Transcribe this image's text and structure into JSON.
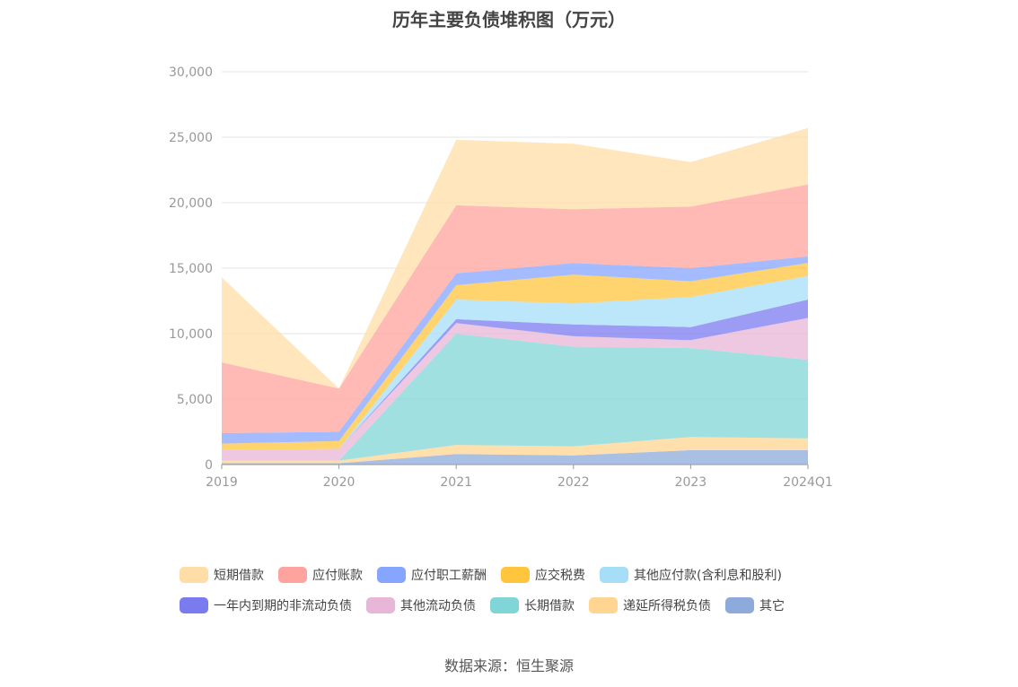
{
  "chart_data": {
    "type": "area",
    "title": "历年主要负债堆积图（万元）",
    "categories": [
      "2019",
      "2020",
      "2021",
      "2022",
      "2023",
      "2024Q1"
    ],
    "ylim": [
      0,
      30000
    ],
    "yticks": [
      "0",
      "5,000",
      "10,000",
      "15,000",
      "20,000",
      "25,000",
      "30,000"
    ],
    "ytick_values": [
      0,
      5000,
      10000,
      15000,
      20000,
      25000,
      30000
    ],
    "stacked": true,
    "grid": true,
    "legend_position": "bottom",
    "series": [
      {
        "name": "其它",
        "color": "#8eaadb",
        "values": [
          100,
          100,
          800,
          700,
          1100,
          1100
        ]
      },
      {
        "name": "递延所得税负债",
        "color": "#ffd591",
        "values": [
          200,
          200,
          700,
          700,
          1000,
          900
        ]
      },
      {
        "name": "长期借款",
        "color": "#80d6d6",
        "values": [
          0,
          0,
          8500,
          7600,
          6800,
          6000
        ]
      },
      {
        "name": "其他流动负债",
        "color": "#e8b6d6",
        "values": [
          800,
          900,
          800,
          800,
          600,
          3200
        ]
      },
      {
        "name": "一年内到期的非流动负债",
        "color": "#7b7bf0",
        "values": [
          0,
          0,
          300,
          900,
          1000,
          1400
        ]
      },
      {
        "name": "其他应付款(含利息和股利)",
        "color": "#a6def7",
        "values": [
          0,
          0,
          1500,
          1600,
          2300,
          1800
        ]
      },
      {
        "name": "应交税费",
        "color": "#ffc53d",
        "values": [
          500,
          600,
          1100,
          2200,
          1200,
          1000
        ]
      },
      {
        "name": "应付职工薪酬",
        "color": "#85a5ff",
        "values": [
          800,
          700,
          900,
          900,
          1000,
          500
        ]
      },
      {
        "name": "应付账款",
        "color": "#ffa39e",
        "values": [
          5400,
          3300,
          5200,
          4100,
          4700,
          5500
        ]
      },
      {
        "name": "短期借款",
        "color": "#ffdda6",
        "values": [
          6500,
          0,
          5000,
          5000,
          3400,
          4300
        ]
      }
    ]
  },
  "legend": {
    "rows": [
      [
        {
          "label": "短期借款",
          "color": "#ffdda6"
        },
        {
          "label": "应付账款",
          "color": "#ffa39e"
        },
        {
          "label": "应付职工薪酬",
          "color": "#85a5ff"
        },
        {
          "label": "应交税费",
          "color": "#ffc53d"
        },
        {
          "label": "其他应付款(含利息和股利)",
          "color": "#a6def7"
        }
      ],
      [
        {
          "label": "一年内到期的非流动负债",
          "color": "#7b7bf0"
        },
        {
          "label": "其他流动负债",
          "color": "#e8b6d6"
        },
        {
          "label": "长期借款",
          "color": "#80d6d6"
        },
        {
          "label": "递延所得税负债",
          "color": "#ffd591"
        },
        {
          "label": "其它",
          "color": "#8eaadb"
        }
      ]
    ]
  },
  "source": "数据来源：恒生聚源"
}
